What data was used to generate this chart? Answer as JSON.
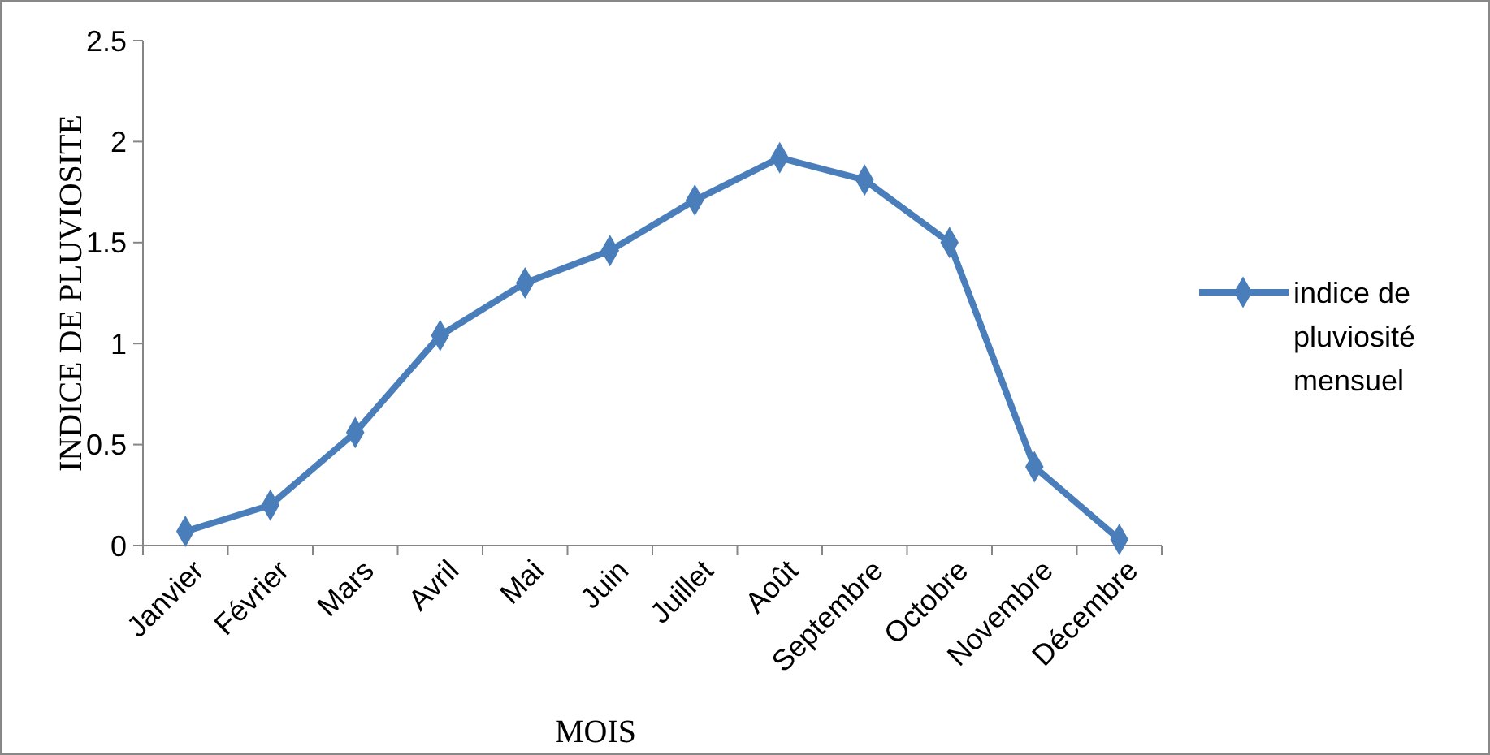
{
  "chart_data": {
    "type": "line",
    "xlabel": "MOIS",
    "ylabel": "INDICE DE PLUVIOSITE",
    "categories": [
      "Janvier",
      "Février",
      "Mars",
      "Avril",
      "Mai",
      "Juin",
      "Juillet",
      "Août",
      "Septembre",
      "Octobre",
      "Novembre",
      "Décembre"
    ],
    "series": [
      {
        "name": "indice de pluviosité mensuel",
        "color": "#4a7ebb",
        "values": [
          0.07,
          0.2,
          0.56,
          1.04,
          1.3,
          1.46,
          1.71,
          1.92,
          1.81,
          1.5,
          0.39,
          0.03
        ]
      }
    ],
    "ylim": [
      0,
      2.5
    ],
    "yticks": [
      0,
      0.5,
      1,
      1.5,
      2,
      2.5
    ],
    "grid": false,
    "legend": "right",
    "marker": "diamond",
    "line_style": "solid"
  }
}
